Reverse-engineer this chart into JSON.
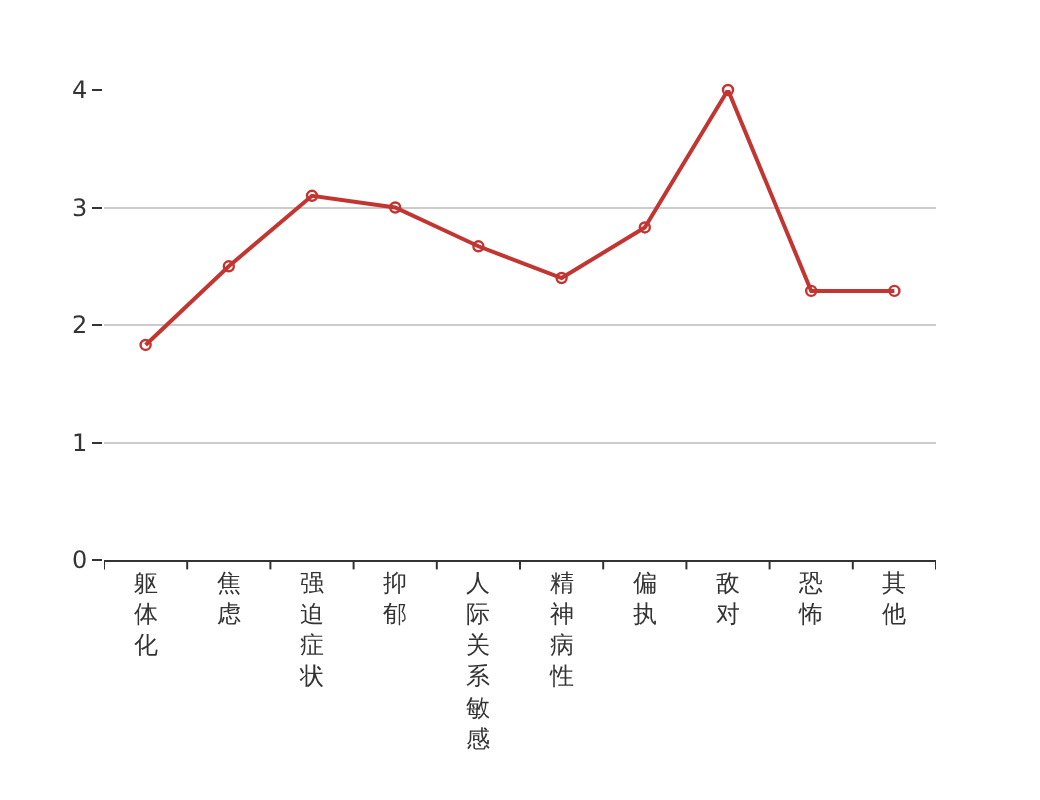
{
  "chart_data": {
    "type": "line",
    "categories": [
      "躯体化",
      "焦虑",
      "强迫症状",
      "抑郁",
      "人际关系敏感",
      "精神病性",
      "偏执",
      "敌对",
      "恐怖",
      "其他"
    ],
    "series": [
      {
        "color": "#c23531",
        "values": [
          1.83,
          2.5,
          3.1,
          3.0,
          2.67,
          2.4,
          2.83,
          4.0,
          2.29,
          2.29
        ]
      }
    ],
    "ylim": [
      0,
      4
    ],
    "yticks": [
      0,
      1,
      2,
      3,
      4
    ],
    "grid": "y",
    "marker": "circle",
    "line_style": "solid"
  }
}
